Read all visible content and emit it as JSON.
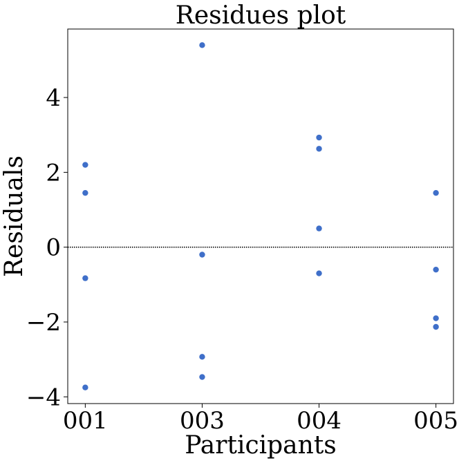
{
  "chart_data": {
    "type": "scatter",
    "title": "Residues plot",
    "xlabel": "Participants",
    "ylabel": "Residuals",
    "categories": [
      "001",
      "003",
      "004",
      "005"
    ],
    "series": [
      {
        "color": "#3f6fc9",
        "points": [
          {
            "x": "001",
            "y": 2.2
          },
          {
            "x": "001",
            "y": 1.45
          },
          {
            "x": "001",
            "y": -0.83
          },
          {
            "x": "001",
            "y": -3.75
          },
          {
            "x": "003",
            "y": 5.4
          },
          {
            "x": "003",
            "y": -0.2
          },
          {
            "x": "003",
            "y": -2.93
          },
          {
            "x": "003",
            "y": -3.47
          },
          {
            "x": "004",
            "y": 2.93
          },
          {
            "x": "004",
            "y": 2.63
          },
          {
            "x": "004",
            "y": 0.5
          },
          {
            "x": "004",
            "y": -0.7
          },
          {
            "x": "005",
            "y": 1.45
          },
          {
            "x": "005",
            "y": -0.6
          },
          {
            "x": "005",
            "y": -1.9
          },
          {
            "x": "005",
            "y": -2.13
          }
        ]
      }
    ],
    "yticks": [
      -4,
      -2,
      0,
      2,
      4
    ],
    "ytick_labels": [
      "−4",
      "−2",
      "0",
      "2",
      "4"
    ],
    "ylim": [
      -4.18,
      5.83
    ],
    "reference_line": {
      "y": 0,
      "style": "dotted",
      "color": "#000000"
    },
    "grid": false,
    "legend": "none"
  }
}
